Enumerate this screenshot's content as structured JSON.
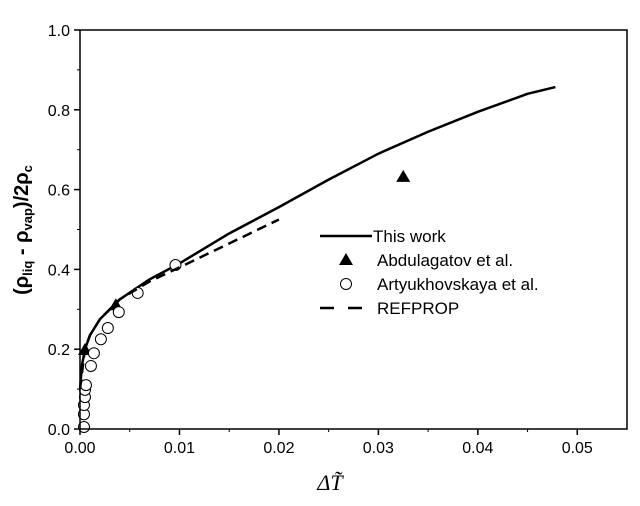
{
  "chart_data": {
    "type": "scatter",
    "xlabel": "ΔT̃",
    "ylabel": "(ρliq - ρvap)/2ρc",
    "ylabel_parts": {
      "open": "(ρ",
      "sub1": "liq",
      "mid": " - ρ",
      "sub2": "vap",
      "close": ")/2ρ",
      "sub3": "c"
    },
    "xlim": [
      0,
      0.055
    ],
    "ylim": [
      0,
      1.0
    ],
    "xticks": [
      "0.00",
      "0.01",
      "0.02",
      "0.03",
      "0.04",
      "0.05"
    ],
    "xtick_values": [
      0,
      0.01,
      0.02,
      0.03,
      0.04,
      0.05
    ],
    "yticks": [
      "0.0",
      "0.2",
      "0.4",
      "0.6",
      "0.8",
      "1.0"
    ],
    "ytick_values": [
      0,
      0.2,
      0.4,
      0.6,
      0.8,
      1.0
    ],
    "legend_position": "center-right",
    "series": [
      {
        "name": "This work",
        "style": "solid-line",
        "x": [
          0,
          0.0002,
          0.0005,
          0.001,
          0.002,
          0.004,
          0.007,
          0.01,
          0.015,
          0.02,
          0.025,
          0.03,
          0.035,
          0.04,
          0.045,
          0.0478
        ],
        "y": [
          0.1,
          0.16,
          0.2,
          0.235,
          0.275,
          0.325,
          0.375,
          0.415,
          0.49,
          0.556,
          0.625,
          0.69,
          0.745,
          0.795,
          0.84,
          0.857
        ]
      },
      {
        "name": "Abdulagatov et al.",
        "style": "filled-triangle",
        "x": [
          0.0005,
          0.0036,
          0.0325
        ],
        "y": [
          0.198,
          0.31,
          0.632
        ]
      },
      {
        "name": "Artyukhovskaya et al.",
        "style": "open-circle",
        "x": [
          0.0004,
          0.0004,
          0.0004,
          0.0005,
          0.0005,
          0.0006,
          0.0011,
          0.0014,
          0.0021,
          0.0028,
          0.0039,
          0.0058,
          0.0096
        ],
        "y": [
          0.005,
          0.037,
          0.06,
          0.08,
          0.098,
          0.11,
          0.158,
          0.19,
          0.225,
          0.253,
          0.293,
          0.341,
          0.411
        ]
      },
      {
        "name": "REFPROP",
        "style": "dashed-line",
        "x": [
          0,
          0.0005,
          0.001,
          0.002,
          0.004,
          0.007,
          0.01,
          0.015,
          0.02
        ],
        "y": [
          0.1,
          0.2,
          0.235,
          0.275,
          0.325,
          0.37,
          0.405,
          0.465,
          0.525
        ]
      }
    ]
  }
}
